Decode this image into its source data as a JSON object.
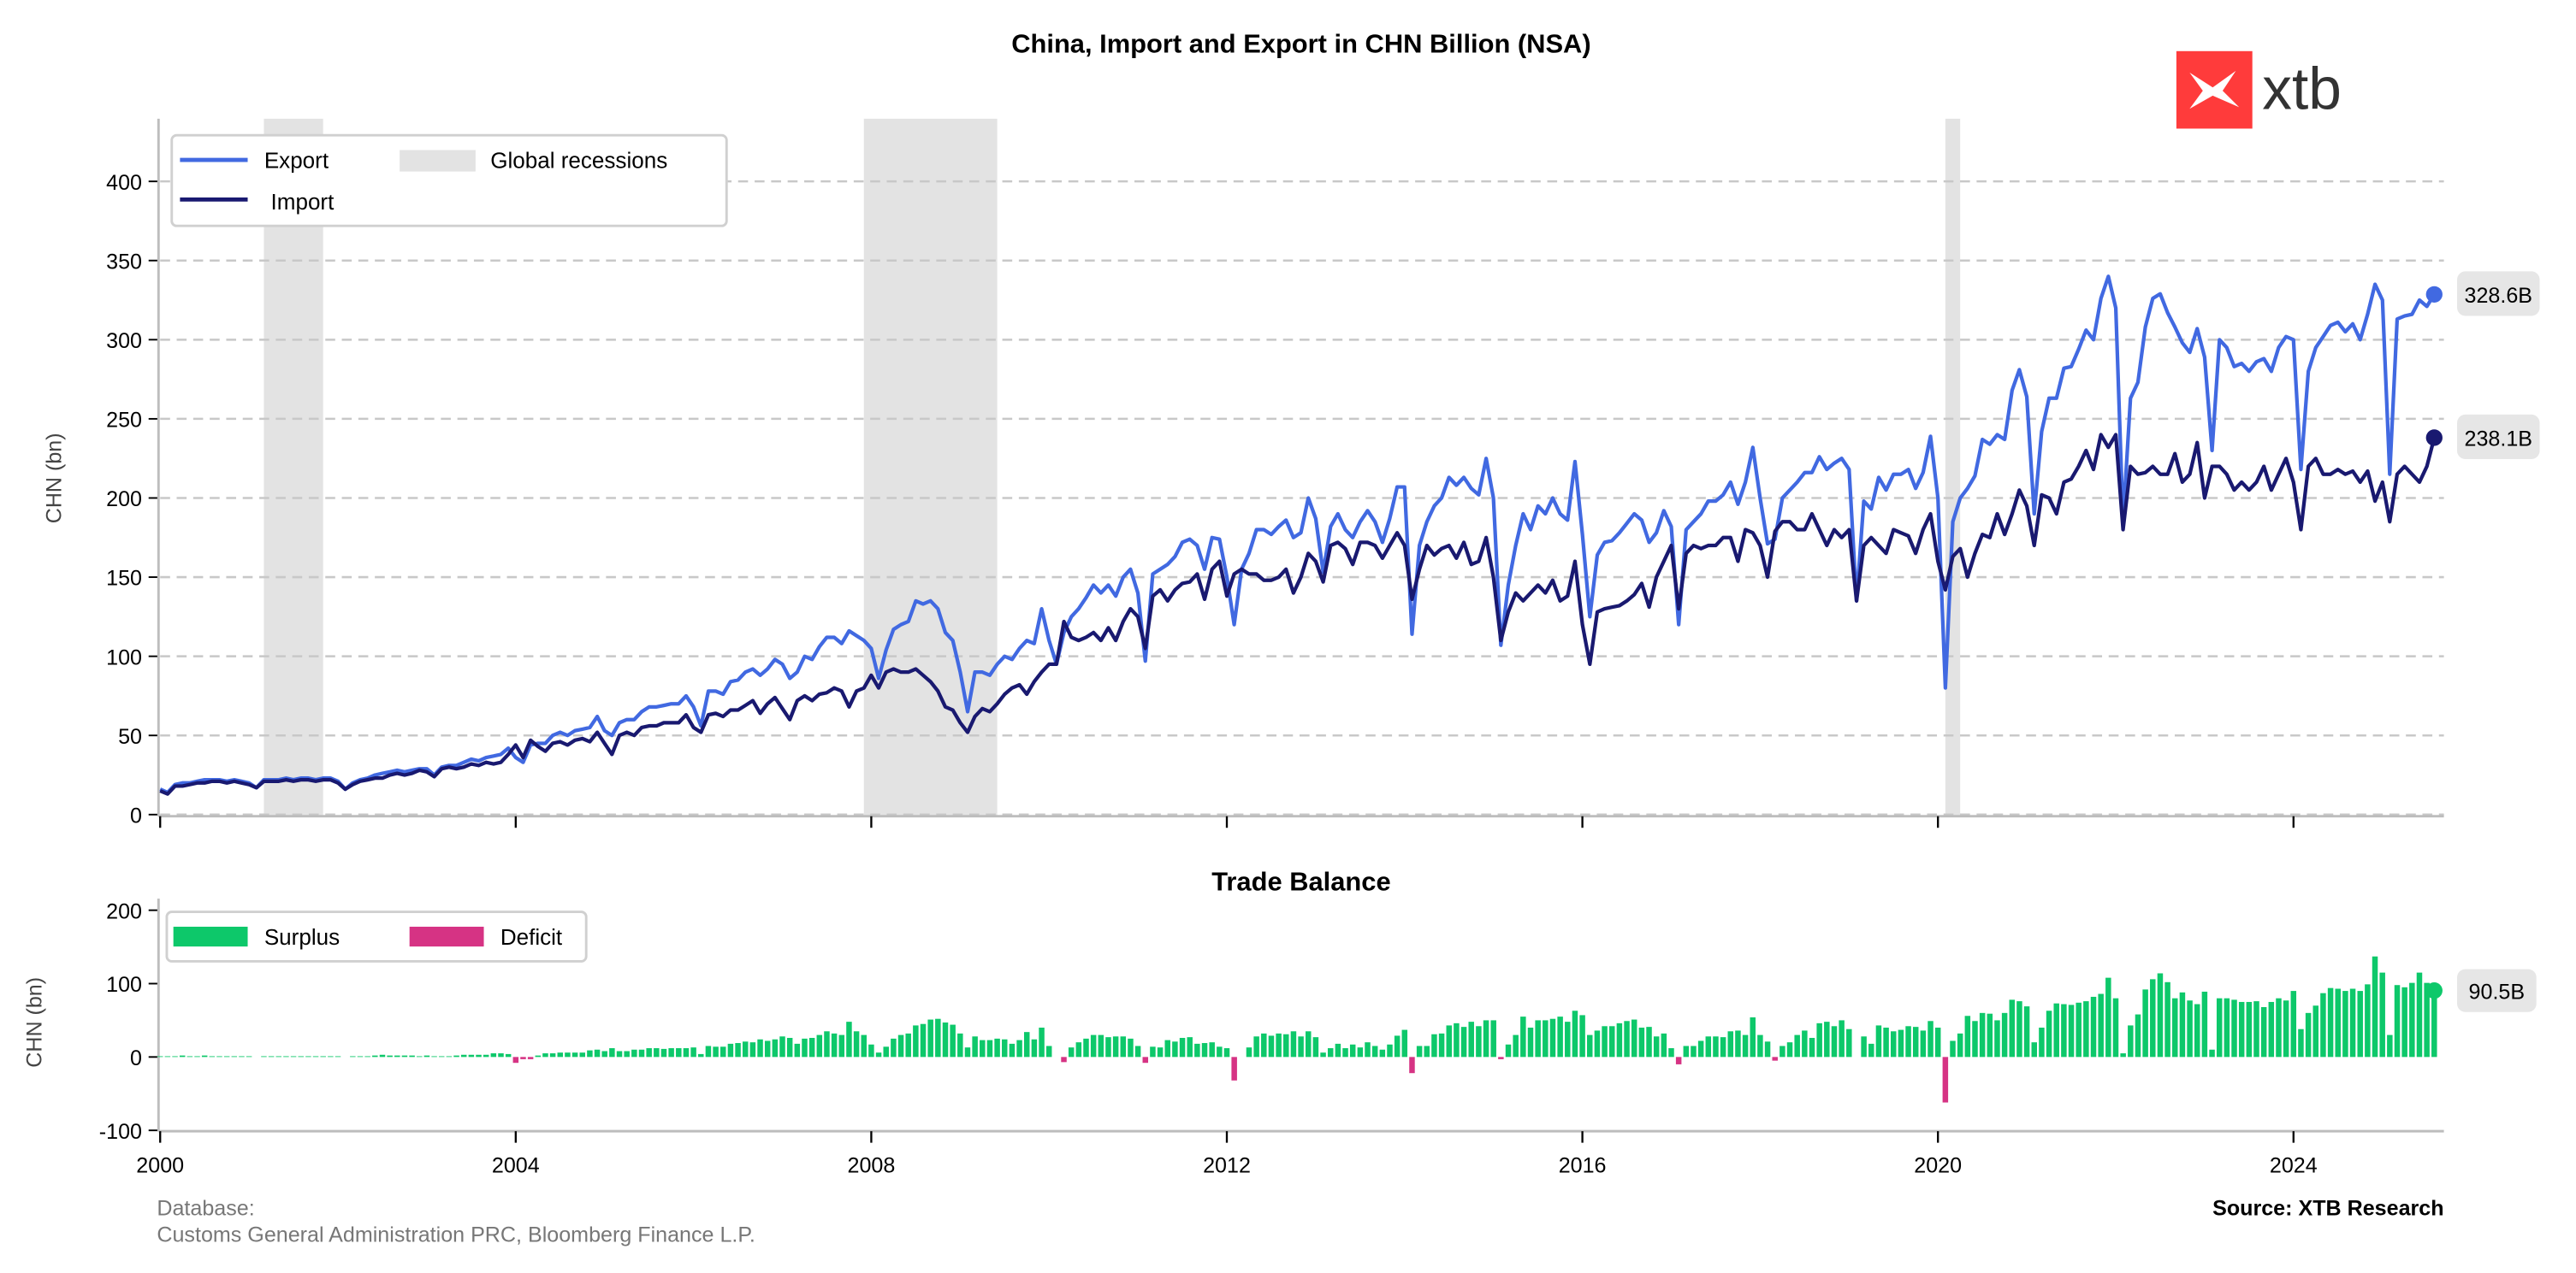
{
  "logo": {
    "text": "xtb",
    "color": "#FF3B3B"
  },
  "footer": {
    "database_label": "Database:",
    "database_sources": "Customs General Administration PRC, Bloomberg Finance L.P.",
    "source": "Source: XTB Research"
  },
  "chart_data": [
    {
      "type": "line",
      "title": "China, Import and Export in CHN Billion (NSA)",
      "ylabel": "CHN (bn)",
      "ylim": [
        0,
        440
      ],
      "yticks": [
        0,
        50,
        100,
        150,
        200,
        250,
        300,
        350,
        400
      ],
      "xticks": [
        "2000",
        "2004",
        "2008",
        "2012",
        "2016",
        "2020",
        "2024"
      ],
      "grid": true,
      "legend": "top-left",
      "start": "2000-01",
      "frequency": "monthly",
      "shaded": {
        "label": "Global recessions",
        "color": "#e3e3e3",
        "ranges": [
          [
            "2001-03",
            "2001-11"
          ],
          [
            "2007-12",
            "2009-06"
          ],
          [
            "2020-02",
            "2020-04"
          ]
        ]
      },
      "series": [
        {
          "name": "Export",
          "color": "#4169E1",
          "end_label": "328.6B",
          "values": [
            16,
            14,
            19,
            20,
            20,
            21,
            22,
            22,
            22,
            21,
            22,
            21,
            20,
            17,
            22,
            22,
            22,
            23,
            22,
            23,
            23,
            22,
            23,
            23,
            21,
            16,
            20,
            22,
            23,
            25,
            26,
            27,
            28,
            27,
            28,
            29,
            29,
            25,
            30,
            31,
            31,
            33,
            35,
            34,
            36,
            37,
            38,
            42,
            36,
            33,
            44,
            45,
            45,
            50,
            52,
            50,
            53,
            54,
            55,
            62,
            53,
            50,
            58,
            60,
            60,
            65,
            68,
            68,
            69,
            70,
            70,
            75,
            68,
            56,
            78,
            78,
            76,
            84,
            85,
            90,
            92,
            88,
            92,
            98,
            95,
            86,
            90,
            100,
            98,
            106,
            112,
            112,
            108,
            116,
            113,
            110,
            105,
            86,
            104,
            117,
            120,
            122,
            135,
            133,
            135,
            130,
            115,
            110,
            90,
            65,
            90,
            90,
            88,
            95,
            100,
            98,
            105,
            110,
            108,
            130,
            110,
            95,
            115,
            125,
            130,
            137,
            145,
            140,
            145,
            138,
            150,
            155,
            140,
            97,
            152,
            155,
            158,
            163,
            172,
            174,
            170,
            155,
            175,
            174,
            150,
            120,
            155,
            165,
            180,
            180,
            177,
            182,
            186,
            175,
            178,
            200,
            187,
            153,
            182,
            190,
            180,
            175,
            185,
            192,
            185,
            172,
            187,
            207,
            207,
            114,
            170,
            185,
            195,
            200,
            213,
            208,
            213,
            206,
            202,
            225,
            200,
            107,
            145,
            170,
            190,
            180,
            195,
            190,
            200,
            190,
            186,
            223,
            177,
            125,
            164,
            172,
            173,
            178,
            184,
            190,
            186,
            172,
            178,
            192,
            182,
            120,
            180,
            185,
            190,
            198,
            198,
            202,
            210,
            196,
            210,
            232,
            200,
            171,
            174,
            200,
            205,
            210,
            216,
            216,
            226,
            218,
            222,
            225,
            218,
            135,
            198,
            193,
            213,
            205,
            215,
            215,
            218,
            206,
            216,
            239,
            200,
            80,
            185,
            200,
            206,
            214,
            237,
            234,
            240,
            237,
            268,
            281,
            264,
            190,
            242,
            263,
            263,
            282,
            283,
            294,
            306,
            300,
            326,
            340,
            320,
            185,
            263,
            273,
            308,
            326,
            329,
            317,
            308,
            298,
            292,
            307,
            289,
            230,
            300,
            295,
            283,
            285,
            280,
            286,
            288,
            280,
            295,
            302,
            300,
            218,
            280,
            295,
            302,
            309,
            311,
            305,
            310,
            300,
            316,
            335,
            325,
            215,
            313,
            315,
            316,
            325,
            321,
            328.6
          ]
        },
        {
          "name": "Import",
          "color": "#191970",
          "end_label": "238.1B",
          "values": [
            15,
            13,
            18,
            18,
            19,
            20,
            20,
            21,
            21,
            20,
            21,
            20,
            19,
            17,
            21,
            21,
            21,
            22,
            21,
            22,
            22,
            21,
            22,
            22,
            20,
            16,
            19,
            21,
            22,
            23,
            23,
            25,
            26,
            25,
            26,
            28,
            27,
            24,
            29,
            30,
            29,
            30,
            32,
            31,
            33,
            32,
            33,
            38,
            44,
            36,
            47,
            43,
            40,
            45,
            46,
            44,
            47,
            48,
            46,
            52,
            45,
            38,
            50,
            52,
            50,
            55,
            56,
            56,
            58,
            58,
            58,
            63,
            55,
            52,
            63,
            64,
            62,
            66,
            66,
            69,
            72,
            64,
            70,
            74,
            67,
            60,
            72,
            75,
            72,
            76,
            77,
            80,
            78,
            68,
            78,
            80,
            88,
            80,
            90,
            92,
            90,
            90,
            92,
            88,
            84,
            78,
            68,
            66,
            58,
            52,
            62,
            67,
            65,
            70,
            76,
            80,
            82,
            76,
            84,
            90,
            95,
            95,
            122,
            112,
            110,
            112,
            115,
            110,
            118,
            110,
            122,
            130,
            125,
            105,
            138,
            142,
            135,
            142,
            146,
            147,
            152,
            136,
            155,
            160,
            138,
            152,
            155,
            152,
            152,
            148,
            148,
            150,
            155,
            140,
            150,
            165,
            160,
            147,
            170,
            172,
            168,
            158,
            172,
            172,
            170,
            162,
            170,
            178,
            170,
            136,
            155,
            170,
            164,
            168,
            170,
            162,
            172,
            158,
            160,
            175,
            150,
            110,
            128,
            140,
            135,
            140,
            145,
            140,
            148,
            135,
            138,
            160,
            120,
            95,
            128,
            130,
            131,
            132,
            135,
            139,
            146,
            131,
            150,
            160,
            170,
            130,
            165,
            170,
            168,
            170,
            170,
            175,
            175,
            160,
            180,
            178,
            170,
            150,
            179,
            185,
            185,
            180,
            180,
            190,
            180,
            170,
            180,
            175,
            180,
            135,
            170,
            175,
            170,
            165,
            180,
            178,
            176,
            165,
            180,
            190,
            160,
            142,
            163,
            168,
            150,
            165,
            177,
            175,
            190,
            177,
            190,
            205,
            195,
            170,
            202,
            200,
            190,
            210,
            212,
            220,
            230,
            218,
            240,
            232,
            240,
            180,
            220,
            215,
            216,
            220,
            215,
            215,
            228,
            210,
            215,
            235,
            200,
            220,
            220,
            215,
            205,
            210,
            205,
            210,
            220,
            205,
            215,
            225,
            210,
            180,
            220,
            225,
            215,
            215,
            218,
            215,
            217,
            210,
            217,
            198,
            210,
            185,
            215,
            220,
            215,
            210,
            220,
            238.1
          ]
        }
      ]
    },
    {
      "type": "bar",
      "title": "Trade Balance",
      "ylabel": "CHN (bn)",
      "ylim": [
        -100,
        200
      ],
      "yticks": [
        -100,
        0,
        100,
        200
      ],
      "xticks": [
        "2000",
        "2004",
        "2008",
        "2012",
        "2016",
        "2020",
        "2024"
      ],
      "legend": "top-left",
      "values_rule": "Export minus Import",
      "series": [
        {
          "name": "Surplus",
          "color": "#0DC86A"
        },
        {
          "name": "Deficit",
          "color": "#D63384"
        }
      ],
      "end_label": "90.5B"
    }
  ]
}
